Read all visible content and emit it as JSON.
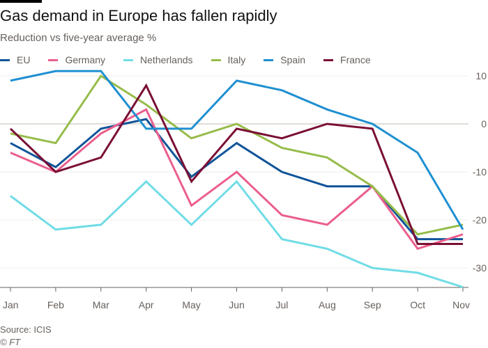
{
  "title": "Gas demand in Europe has fallen rapidly",
  "subtitle": "Reduction vs five-year average %",
  "source": "Source: ICIS",
  "credit": "© FT",
  "chart_data": {
    "type": "line",
    "title": "Gas demand in Europe has fallen rapidly",
    "subtitle": "Reduction vs five-year average %",
    "categories": [
      "Jan",
      "Feb",
      "Mar",
      "Apr",
      "May",
      "Jun",
      "Jul",
      "Aug",
      "Sep",
      "Oct",
      "Nov"
    ],
    "yticks": [
      10,
      0,
      -10,
      -20,
      -30
    ],
    "ylim": [
      -35,
      12
    ],
    "grid": true,
    "legend": "top",
    "yaxis_side": "right",
    "series": [
      {
        "name": "EU",
        "color": "#0f5499",
        "values": [
          -4,
          -9,
          -1,
          1,
          -11,
          -4,
          -10,
          -13,
          -13,
          -24,
          -24
        ]
      },
      {
        "name": "Germany",
        "color": "#eb5e8d",
        "values": [
          -6,
          -10,
          -2,
          3,
          -17,
          -10,
          -19,
          -21,
          -13,
          -26,
          -23
        ]
      },
      {
        "name": "Netherlands",
        "color": "#70dce6",
        "values": [
          -15,
          -22,
          -21,
          -12,
          -21,
          -12,
          -24,
          -26,
          -30,
          -31,
          -34
        ]
      },
      {
        "name": "Italy",
        "color": "#96bc4b",
        "values": [
          -2,
          -4,
          10,
          4,
          -3,
          0,
          -5,
          -7,
          -13,
          -23,
          -21
        ]
      },
      {
        "name": "Spain",
        "color": "#1e8fd1",
        "values": [
          9,
          11,
          11,
          -1,
          -1,
          9,
          7,
          3,
          0,
          -6,
          -22
        ]
      },
      {
        "name": "France",
        "color": "#7a0f35",
        "values": [
          -1,
          -10,
          -7,
          8,
          -12,
          -1,
          -3,
          0,
          -1,
          -25,
          -25
        ]
      }
    ]
  }
}
